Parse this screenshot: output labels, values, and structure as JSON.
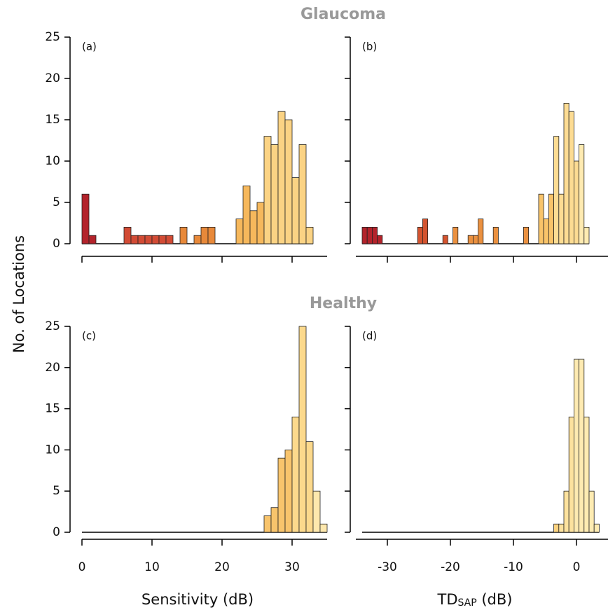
{
  "ylabel": "No. of Locations",
  "chart_data": [
    {
      "type": "histogram",
      "title": "Glaucoma",
      "label": "(a)",
      "bins": [
        0,
        1,
        2,
        3,
        4,
        5,
        6,
        7,
        8,
        9,
        10,
        11,
        12,
        13,
        14,
        15,
        16,
        17,
        18,
        19,
        20,
        21,
        22,
        23,
        24,
        25,
        26,
        27,
        28,
        29,
        30,
        31,
        32,
        33
      ],
      "values": [
        6,
        1,
        0,
        0,
        0,
        0,
        2,
        1,
        1,
        1,
        1,
        1,
        1,
        0,
        2,
        0,
        1,
        2,
        2,
        0,
        0,
        0,
        3,
        7,
        4,
        5,
        13,
        12,
        16,
        15,
        8,
        12,
        2
      ],
      "xlim": [
        0,
        35
      ],
      "xticks": [
        0,
        10,
        20,
        30
      ],
      "ylim": [
        0,
        25
      ],
      "yticks": [
        0,
        5,
        10,
        15,
        20,
        25
      ],
      "show_xtick_labels": false,
      "show_ytick_labels": true,
      "color_bands": [
        [
          0,
          "#b3232b"
        ],
        [
          6,
          "#d24b35"
        ],
        [
          14,
          "#e8893a"
        ],
        [
          22,
          "#f6b85c"
        ],
        [
          26,
          "#fbd384"
        ]
      ]
    },
    {
      "type": "histogram",
      "label": "(b)",
      "bins": [
        -34,
        -33.2,
        -32.4,
        -31.6,
        -30.8,
        -30,
        -29.2,
        -28.4,
        -27.6,
        -26.8,
        -26,
        -25.2,
        -24.4,
        -23.6,
        -22.8,
        -22,
        -21.2,
        -20.4,
        -19.6,
        -18.8,
        -18,
        -17.2,
        -16.4,
        -15.6,
        -14.8,
        -14,
        -13.2,
        -12.4,
        -11.6,
        -10.8,
        -10,
        -9.2,
        -8.4,
        -7.6,
        -6.8,
        -6,
        -5.2,
        -4.4,
        -3.6,
        -2.8,
        -2,
        -1.2,
        -0.4,
        0.4,
        1.2,
        2
      ],
      "values": [
        2,
        2,
        2,
        1,
        0,
        0,
        0,
        0,
        0,
        0,
        0,
        2,
        3,
        0,
        0,
        0,
        1,
        0,
        2,
        0,
        0,
        1,
        1,
        3,
        0,
        0,
        2,
        0,
        0,
        0,
        0,
        0,
        2,
        0,
        0,
        6,
        3,
        6,
        13,
        6,
        17,
        16,
        10,
        12,
        2
      ],
      "xlim": [
        -35,
        5
      ],
      "xticks": [
        -30,
        -20,
        -10,
        0
      ],
      "ylim": [
        0,
        25
      ],
      "yticks": [
        0,
        5,
        10,
        15,
        20,
        25
      ],
      "show_xtick_labels": false,
      "show_ytick_labels": false,
      "color_bands": [
        [
          -34,
          "#b3232b"
        ],
        [
          -26,
          "#d4542f"
        ],
        [
          -20,
          "#eb9140"
        ],
        [
          -8,
          "#f9c46a"
        ],
        [
          -4,
          "#fddc93"
        ],
        [
          0,
          "#feebb2"
        ]
      ]
    },
    {
      "type": "histogram",
      "title": "Healthy",
      "label": "(c)",
      "bins": [
        0,
        1,
        2,
        3,
        4,
        5,
        6,
        7,
        8,
        9,
        10,
        11,
        12,
        13,
        14,
        15,
        16,
        17,
        18,
        19,
        20,
        21,
        22,
        23,
        24,
        25,
        26,
        27,
        28,
        29,
        30,
        31,
        32,
        33,
        34,
        35
      ],
      "values": [
        0,
        0,
        0,
        0,
        0,
        0,
        0,
        0,
        0,
        0,
        0,
        0,
        0,
        0,
        0,
        0,
        0,
        0,
        0,
        0,
        0,
        0,
        0,
        0,
        0,
        0,
        2,
        3,
        9,
        10,
        14,
        25,
        11,
        5,
        1
      ],
      "xlim": [
        0,
        35
      ],
      "xticks": [
        0,
        10,
        20,
        30
      ],
      "ylim": [
        0,
        25
      ],
      "yticks": [
        0,
        5,
        10,
        15,
        20,
        25
      ],
      "show_xtick_labels": true,
      "show_ytick_labels": true,
      "xlabel": "Sensitivity (dB)",
      "color_bands": [
        [
          0,
          "#f8c46c"
        ],
        [
          30,
          "#fcd98c"
        ],
        [
          33,
          "#fee8ad"
        ]
      ]
    },
    {
      "type": "histogram",
      "label": "(d)",
      "bins": [
        -34,
        -33.2,
        -32.4,
        -31.6,
        -30.8,
        -30,
        -29.2,
        -28.4,
        -27.6,
        -26.8,
        -26,
        -25.2,
        -24.4,
        -23.6,
        -22.8,
        -22,
        -21.2,
        -20.4,
        -19.6,
        -18.8,
        -18,
        -17.2,
        -16.4,
        -15.6,
        -14.8,
        -14,
        -13.2,
        -12.4,
        -11.6,
        -10.8,
        -10,
        -9.2,
        -8.4,
        -7.6,
        -6.8,
        -6,
        -5.2,
        -4.4,
        -3.6,
        -2.8,
        -2,
        -1.2,
        -0.4,
        0.4,
        1.2,
        2,
        2.8,
        3.6
      ],
      "values": [
        0,
        0,
        0,
        0,
        0,
        0,
        0,
        0,
        0,
        0,
        0,
        0,
        0,
        0,
        0,
        0,
        0,
        0,
        0,
        0,
        0,
        0,
        0,
        0,
        0,
        0,
        0,
        0,
        0,
        0,
        0,
        0,
        0,
        0,
        0,
        0,
        0,
        0,
        1,
        1,
        5,
        14,
        21,
        21,
        14,
        5,
        1
      ],
      "xlim": [
        -35,
        5
      ],
      "xticks": [
        -30,
        -20,
        -10,
        0
      ],
      "ylim": [
        0,
        25
      ],
      "yticks": [
        0,
        5,
        10,
        15,
        20,
        25
      ],
      "show_xtick_labels": true,
      "show_ytick_labels": false,
      "xlabel": "TD",
      "xlabel_sub": "SAP",
      "xlabel_suffix": " (dB)",
      "color_bands": [
        [
          -34,
          "#fbd27f"
        ],
        [
          -2.8,
          "#fde29e"
        ],
        [
          -0.4,
          "#feebb2"
        ]
      ]
    }
  ]
}
